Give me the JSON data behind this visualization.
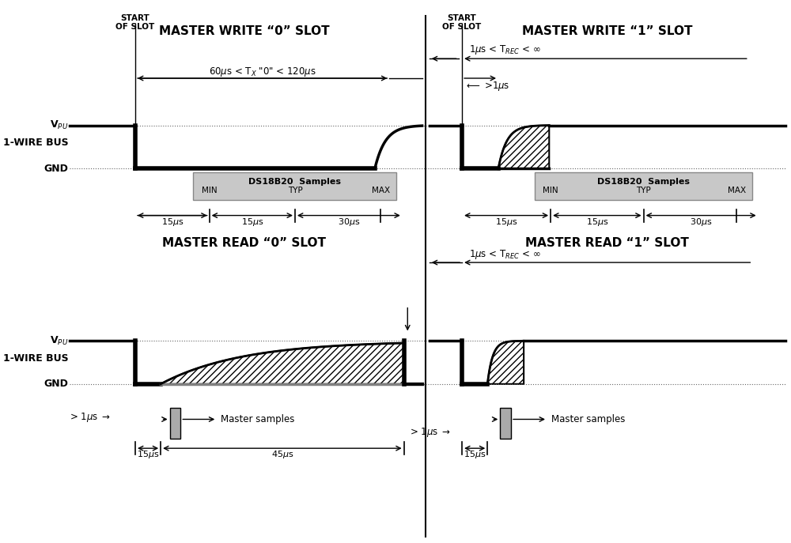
{
  "bg_color": "#ffffff",
  "line_color": "#000000",
  "gray_color": "#aaaaaa",
  "hatch_color": "#000000",
  "box_bg": "#c8c8c8",
  "title_top_left": "MASTER WRITE “0” SLOT",
  "title_top_right": "MASTER WRITE “1” SLOT",
  "title_bot_left": "MASTER READ “0” SLOT",
  "title_bot_right": "MASTER READ “1” SLOT",
  "vpu_label": "Vₚᵤ",
  "bus_label": "1-WIRE BUS",
  "gnd_label": "GND",
  "start_slot": "START\nOF SLOT",
  "ds_samples": "DS18B20  Samples",
  "min_label": "MIN",
  "typ_label": "TYP",
  "max_label": "MAX",
  "master_samples": "Master samples"
}
